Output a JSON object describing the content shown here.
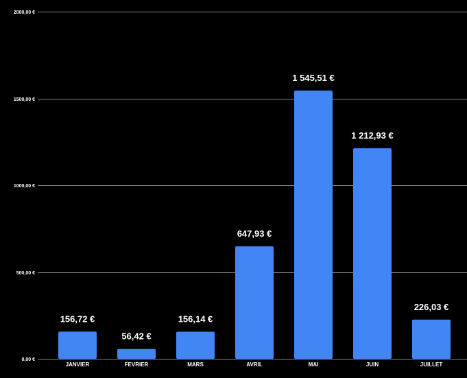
{
  "chart_data": {
    "type": "bar",
    "categories": [
      "JANVIER",
      "FEVRIER",
      "MARS",
      "AVRIL",
      "MAI",
      "JUIN",
      "JUILLET"
    ],
    "values": [
      156.72,
      56.42,
      156.14,
      647.93,
      1545.51,
      1212.93,
      226.03
    ],
    "data_labels": [
      "156,72 €",
      "56,42 €",
      "156,14 €",
      "647,93 €",
      "1 545,51 €",
      "1 212,93 €",
      "226,03 €"
    ],
    "title": "",
    "xlabel": "",
    "ylabel": "",
    "ylim": [
      0,
      2000
    ],
    "y_ticks": [
      0,
      500,
      1000,
      1500,
      2000
    ],
    "y_tick_labels": [
      "0,00 €",
      "500,00 €",
      "1000,00 €",
      "1500,00 €",
      "2000,00 €"
    ],
    "grid": true,
    "legend": "none",
    "colors": {
      "background": "#000000",
      "bar": "#4285f4",
      "gridline": "#888888",
      "text": "#ffffff"
    }
  }
}
